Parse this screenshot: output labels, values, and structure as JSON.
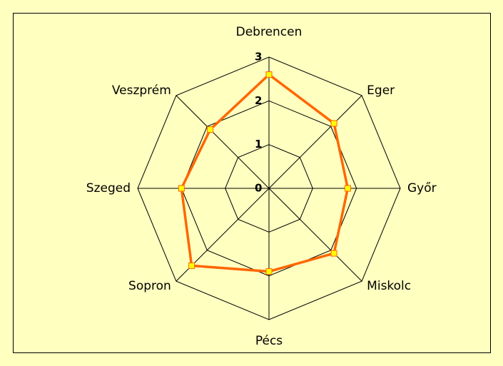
{
  "chart_data": {
    "type": "radar",
    "categories": [
      "Debrencen",
      "Eger",
      "Győr",
      "Miskolc",
      "Pécs",
      "Sopron",
      "Szeged",
      "Veszprém"
    ],
    "values": [
      2.6,
      2.1,
      1.8,
      2.1,
      1.9,
      2.5,
      2.0,
      1.9
    ],
    "color": "#ff6600",
    "marker_color": "#ffff00",
    "rlim": [
      0,
      3
    ],
    "rticks": [
      0,
      1,
      2,
      3
    ],
    "grid": true
  }
}
